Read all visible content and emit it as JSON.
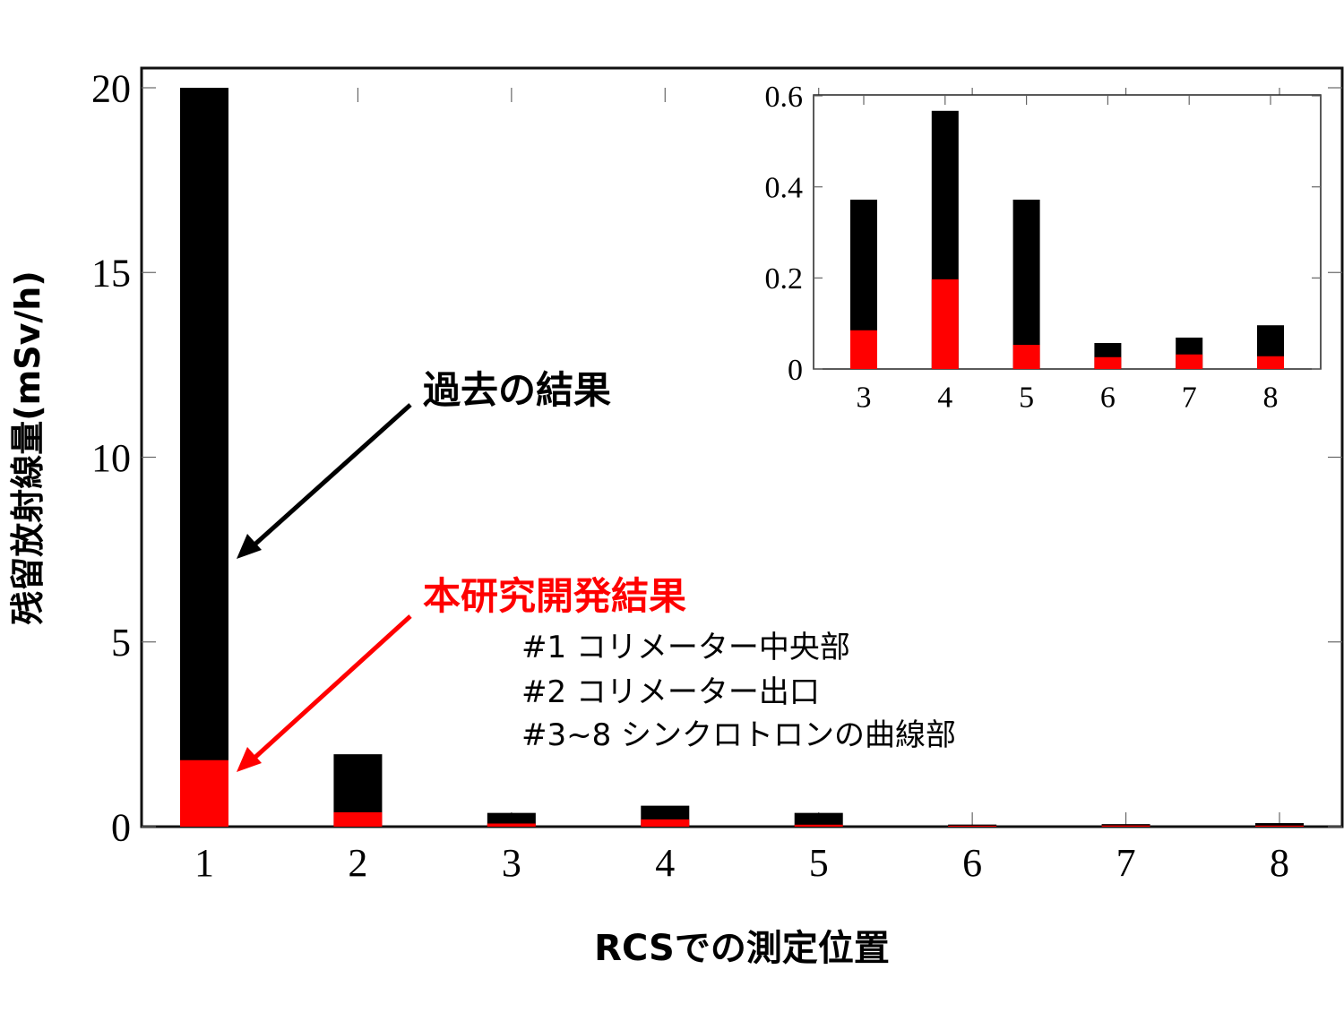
{
  "chart_data": [
    {
      "type": "bar",
      "stacked": true,
      "title": "",
      "xlabel": "RCSでの測定位置",
      "ylabel": "残留放射線量(mSv/h)",
      "categories": [
        "1",
        "2",
        "3",
        "4",
        "5",
        "6",
        "7",
        "8"
      ],
      "series": [
        {
          "name": "過去の結果",
          "color": "#000000",
          "values": [
            20.0,
            1.96,
            0.372,
            0.567,
            0.372,
            0.057,
            0.069,
            0.096
          ]
        },
        {
          "name": "本研究開発結果",
          "color": "#ff0000",
          "values": [
            1.8,
            0.39,
            0.085,
            0.197,
            0.053,
            0.026,
            0.032,
            0.028
          ]
        }
      ],
      "ylim": [
        0,
        20
      ],
      "yticks": [
        "0",
        "5",
        "10",
        "15",
        "20"
      ],
      "grid": false,
      "legend": "annotations with arrows"
    },
    {
      "type": "bar",
      "stacked": true,
      "title": "inset",
      "xlabel": "",
      "ylabel": "",
      "categories": [
        "3",
        "4",
        "5",
        "6",
        "7",
        "8"
      ],
      "series": [
        {
          "name": "過去の結果",
          "color": "#000000",
          "values": [
            0.372,
            0.567,
            0.372,
            0.057,
            0.069,
            0.096
          ]
        },
        {
          "name": "本研究開発結果",
          "color": "#ff0000",
          "values": [
            0.085,
            0.197,
            0.053,
            0.026,
            0.032,
            0.028
          ]
        }
      ],
      "ylim": [
        0,
        0.6
      ],
      "yticks": [
        "0",
        "0.2",
        "0.4",
        "0.6"
      ],
      "grid": false
    }
  ],
  "annotations": {
    "past_label": "過去の結果",
    "new_label": "本研究開発結果",
    "past_color": "#000000",
    "new_color": "#ff0000",
    "notes": [
      "#1 コリメーター中央部",
      "#2 コリメーター出口",
      "#3~8 シンクロトロンの曲線部"
    ]
  },
  "axes": {
    "ylabel": "残留放射線量(mSv/h)",
    "xlabel": "RCSでの測定位置"
  }
}
